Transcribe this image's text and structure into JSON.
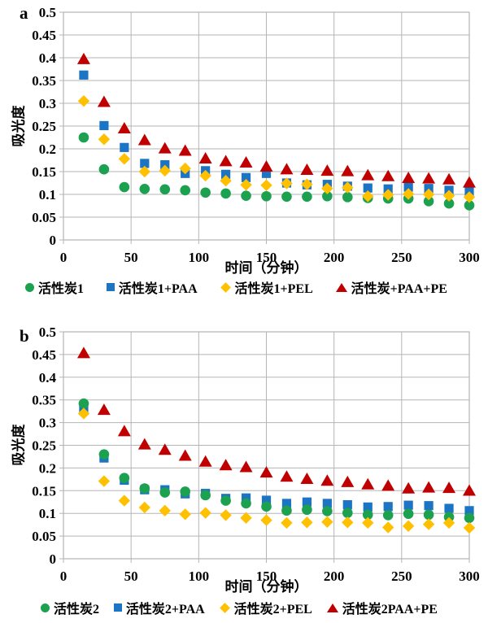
{
  "style": {
    "grid_color": "#b5b5b5",
    "text_color": "#000000",
    "background": "#ffffff"
  },
  "chart_data": [
    {
      "type": "scatter",
      "panel_label": "a",
      "xlabel": "时间（分钟）",
      "ylabel": "吸光度",
      "xlim": [
        0,
        300
      ],
      "ylim": [
        0,
        0.5
      ],
      "grid": true,
      "legend_position": "bottom",
      "xticks": [
        0,
        50,
        100,
        150,
        200,
        250,
        300
      ],
      "xtick_labels": [
        "0",
        "50",
        "100",
        "150",
        "200",
        "250",
        "300"
      ],
      "yticks": [
        0,
        0.05,
        0.1,
        0.15,
        0.2,
        0.25,
        0.3,
        0.35,
        0.4,
        0.45,
        0.5
      ],
      "ytick_labels": [
        "0",
        "0.05",
        "0.1",
        "0.15",
        "0.2",
        "0.25",
        "0.3",
        "0.35",
        "0.4",
        "0.45",
        "0.5"
      ],
      "x": [
        15,
        30,
        45,
        60,
        75,
        90,
        105,
        120,
        135,
        150,
        165,
        180,
        195,
        210,
        225,
        240,
        255,
        270,
        285,
        300
      ],
      "series": [
        {
          "name": "活性炭1",
          "marker": "circle",
          "color": "#1ca150",
          "z": 1,
          "values": [
            0.225,
            0.155,
            0.116,
            0.112,
            0.111,
            0.109,
            0.104,
            0.102,
            0.097,
            0.096,
            0.095,
            0.095,
            0.096,
            0.094,
            0.092,
            0.091,
            0.091,
            0.085,
            0.08,
            0.076
          ]
        },
        {
          "name": "活性炭1+PAA",
          "marker": "square",
          "color": "#1b74c4",
          "z": 0,
          "values": [
            0.362,
            0.251,
            0.203,
            0.168,
            0.165,
            0.146,
            0.152,
            0.144,
            0.137,
            0.146,
            0.125,
            0.121,
            0.122,
            0.118,
            0.114,
            0.112,
            0.116,
            0.113,
            0.109,
            0.106
          ]
        },
        {
          "name": "活性炭1+PEL",
          "marker": "diamond",
          "color": "#ffc000",
          "z": 2,
          "values": [
            0.305,
            0.221,
            0.178,
            0.15,
            0.152,
            0.157,
            0.141,
            0.13,
            0.121,
            0.12,
            0.124,
            0.122,
            0.113,
            0.115,
            0.096,
            0.099,
            0.101,
            0.1,
            0.097,
            0.094
          ]
        },
        {
          "name": "活性炭+PAA+PE",
          "marker": "triangle",
          "color": "#c00000",
          "z": 3,
          "values": [
            0.397,
            0.303,
            0.245,
            0.219,
            0.201,
            0.196,
            0.179,
            0.173,
            0.17,
            0.161,
            0.155,
            0.154,
            0.152,
            0.151,
            0.142,
            0.14,
            0.136,
            0.135,
            0.133,
            0.126
          ]
        }
      ]
    },
    {
      "type": "scatter",
      "panel_label": "b",
      "xlabel": "时间（分钟）",
      "ylabel": "吸光度",
      "xlim": [
        0,
        300
      ],
      "ylim": [
        0,
        0.5
      ],
      "grid": true,
      "legend_position": "bottom",
      "xticks": [
        0,
        50,
        100,
        150,
        200,
        250,
        300
      ],
      "xtick_labels": [
        "0",
        "50",
        "100",
        "150",
        "200",
        "250",
        "300"
      ],
      "yticks": [
        0,
        0.05,
        0.1,
        0.15,
        0.2,
        0.25,
        0.3,
        0.35,
        0.4,
        0.45,
        0.5
      ],
      "ytick_labels": [
        "0",
        "0.05",
        "0.1",
        "0.15",
        "0.2",
        "0.25",
        "0.3",
        "0.35",
        "0.4",
        "0.45",
        "0.5"
      ],
      "x": [
        15,
        30,
        45,
        60,
        75,
        90,
        105,
        120,
        135,
        150,
        165,
        180,
        195,
        210,
        225,
        240,
        255,
        270,
        285,
        300
      ],
      "series": [
        {
          "name": "活性炭2",
          "marker": "circle",
          "color": "#1ca150",
          "z": 1,
          "values": [
            0.342,
            0.23,
            0.178,
            0.155,
            0.146,
            0.148,
            0.14,
            0.128,
            0.122,
            0.115,
            0.106,
            0.108,
            0.105,
            0.101,
            0.097,
            0.096,
            0.099,
            0.097,
            0.092,
            0.09
          ]
        },
        {
          "name": "活性炭2+PAA",
          "marker": "square",
          "color": "#1b74c4",
          "z": 0,
          "values": [
            0.331,
            0.222,
            0.173,
            0.152,
            0.152,
            0.143,
            0.144,
            0.133,
            0.134,
            0.129,
            0.122,
            0.125,
            0.122,
            0.119,
            0.114,
            0.115,
            0.118,
            0.117,
            0.111,
            0.106
          ]
        },
        {
          "name": "活性炭2+PEL",
          "marker": "diamond",
          "color": "#ffc000",
          "z": 2,
          "values": [
            0.32,
            0.171,
            0.128,
            0.113,
            0.106,
            0.098,
            0.101,
            0.096,
            0.09,
            0.085,
            0.079,
            0.08,
            0.081,
            0.08,
            0.079,
            0.069,
            0.072,
            0.076,
            0.079,
            0.068
          ]
        },
        {
          "name": "活性炭2PAA+PE",
          "marker": "triangle",
          "color": "#c00000",
          "z": 3,
          "values": [
            0.453,
            0.328,
            0.281,
            0.252,
            0.24,
            0.227,
            0.214,
            0.206,
            0.202,
            0.19,
            0.181,
            0.176,
            0.172,
            0.169,
            0.164,
            0.161,
            0.155,
            0.157,
            0.156,
            0.15
          ]
        }
      ]
    }
  ]
}
